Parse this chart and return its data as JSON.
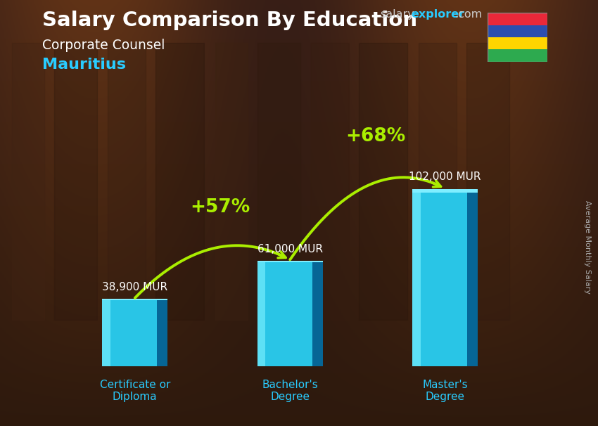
{
  "title_main": "Salary Comparison By Education",
  "subtitle_job": "Corporate Counsel",
  "subtitle_location": "Mauritius",
  "ylabel": "Average Monthly Salary",
  "categories": [
    "Certificate or\nDiploma",
    "Bachelor's\nDegree",
    "Master's\nDegree"
  ],
  "values": [
    38900,
    61000,
    102000
  ],
  "value_labels": [
    "38,900 MUR",
    "61,000 MUR",
    "102,000 MUR"
  ],
  "pct_labels": [
    "+57%",
    "+68%"
  ],
  "bar_color_main": "#29c5e6",
  "bar_color_light": "#5de0f5",
  "bar_color_dark": "#0077aa",
  "bar_color_darker": "#005588",
  "background_top": "#2a1a0e",
  "background_mid": "#1a0d06",
  "title_color": "#ffffff",
  "subtitle_job_color": "#ffffff",
  "subtitle_loc_color": "#29ccff",
  "value_label_color": "#ffffff",
  "pct_color": "#aaee00",
  "arrow_color": "#aaee00",
  "xtick_color": "#29ccff",
  "site_salary_color": "#cccccc",
  "site_explorer_color": "#29ccff",
  "ylim": [
    0,
    135000
  ],
  "flag_colors_top_to_bottom": [
    "#EA2839",
    "#2B4EAF",
    "#FFD500",
    "#2DAA4F"
  ],
  "bar_width": 0.42,
  "x_positions": [
    0,
    1,
    2
  ]
}
